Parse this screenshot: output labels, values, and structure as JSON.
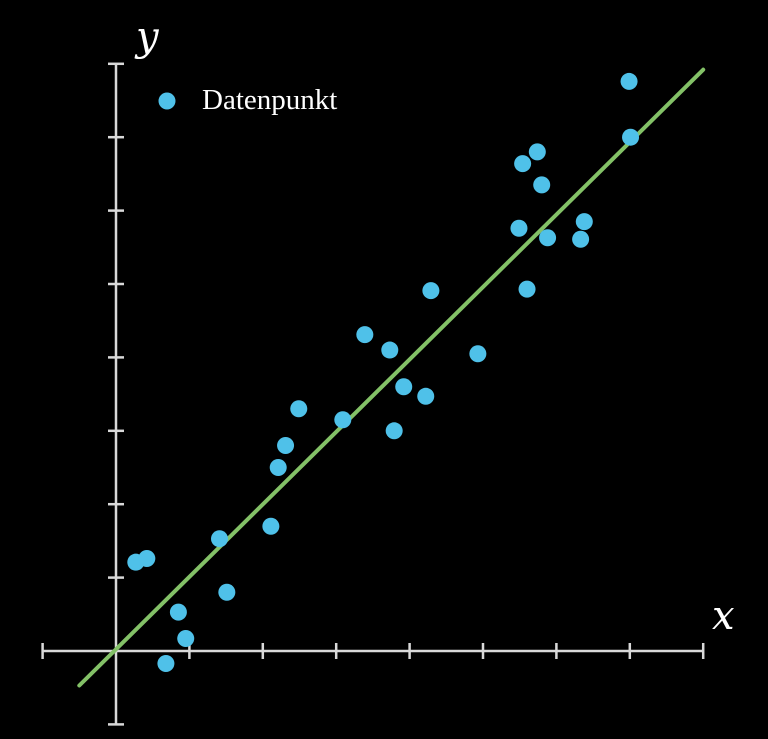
{
  "chart_data": {
    "type": "scatter",
    "xlabel": "x",
    "ylabel": "y",
    "xlim": [
      -1,
      8
    ],
    "ylim": [
      -1,
      8
    ],
    "x_ticks": [
      -1,
      1,
      2,
      3,
      4,
      5,
      6,
      7,
      8
    ],
    "y_ticks": [
      -1,
      1,
      2,
      3,
      4,
      5,
      6,
      7,
      8
    ],
    "tick_labels_shown": false,
    "grid": false,
    "legend_position": "top-left",
    "colors": {
      "background": "#000000",
      "axes": "#d9d9d9",
      "points": "#4fc1e9",
      "fit_line": "#83c167"
    },
    "series": [
      {
        "name": "Datenpunkt",
        "kind": "points",
        "points": [
          [
            0.27,
            1.21
          ],
          [
            0.42,
            1.26
          ],
          [
            0.68,
            -0.17
          ],
          [
            0.85,
            0.53
          ],
          [
            0.95,
            0.17
          ],
          [
            1.41,
            1.53
          ],
          [
            1.51,
            0.8
          ],
          [
            2.11,
            1.7
          ],
          [
            2.21,
            2.5
          ],
          [
            2.31,
            2.8
          ],
          [
            2.49,
            3.3
          ],
          [
            3.09,
            3.15
          ],
          [
            3.39,
            4.31
          ],
          [
            3.73,
            4.1
          ],
          [
            3.79,
            3.0
          ],
          [
            3.92,
            3.6
          ],
          [
            4.22,
            3.47
          ],
          [
            4.29,
            4.91
          ],
          [
            4.93,
            4.05
          ],
          [
            5.49,
            5.76
          ],
          [
            5.54,
            6.64
          ],
          [
            5.6,
            4.93
          ],
          [
            5.74,
            6.8
          ],
          [
            5.8,
            6.35
          ],
          [
            5.88,
            5.63
          ],
          [
            6.33,
            5.61
          ],
          [
            6.38,
            5.85
          ],
          [
            6.99,
            7.76
          ],
          [
            7.01,
            7.0
          ]
        ]
      },
      {
        "kind": "line",
        "points": [
          [
            -0.5,
            -0.47
          ],
          [
            8.0,
            7.92
          ]
        ]
      }
    ]
  }
}
